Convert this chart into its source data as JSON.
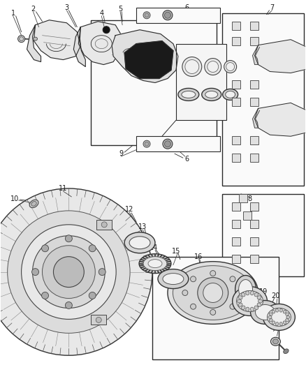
{
  "bg_color": "#ffffff",
  "fig_width": 4.38,
  "fig_height": 5.33,
  "dpi": 100,
  "text_color": "#1a1a1a",
  "line_color": "#2a2a2a",
  "label_fontsize": 7.0,
  "part_fill": "#f0f0f0",
  "part_dark": "#555555",
  "part_black": "#111111"
}
